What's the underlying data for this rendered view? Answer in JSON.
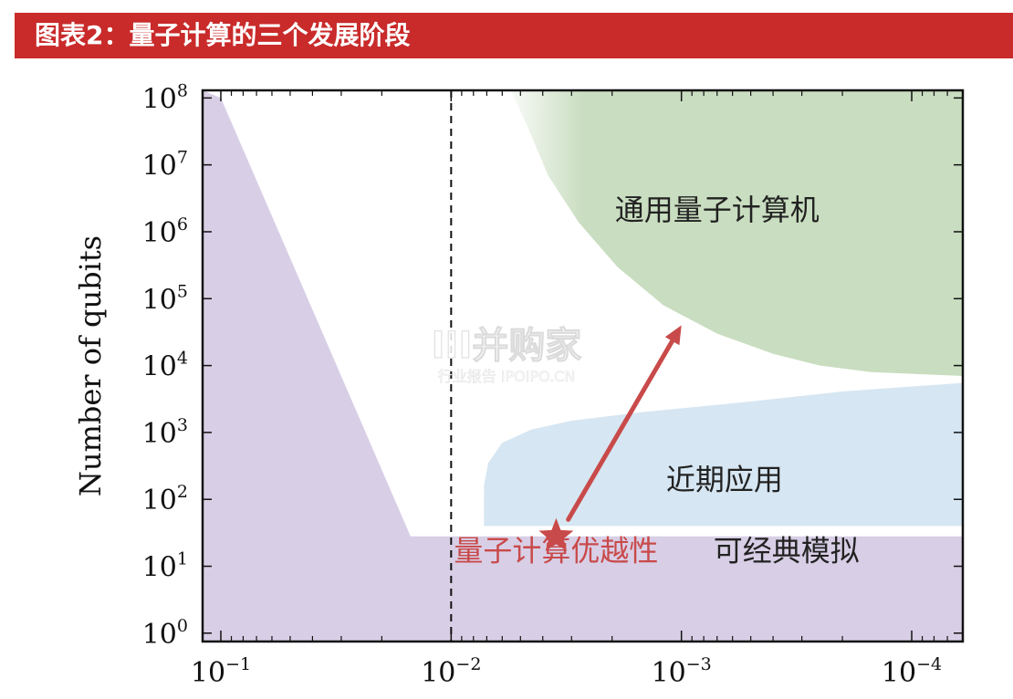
{
  "header": {
    "title": "图表2：量子计算的三个发展阶段",
    "bg_color": "#c92a2a"
  },
  "chart_data": {
    "type": "area",
    "title": "",
    "xlabel": "",
    "ylabel": "Number of qubits",
    "x_scale": "log",
    "x_reversed": true,
    "y_scale": "log",
    "xlim": [
      0.12,
      6e-05
    ],
    "ylim": [
      0.75,
      130000000
    ],
    "x_ticks": [
      {
        "value": 0.1,
        "base": "10",
        "exp": "−1"
      },
      {
        "value": 0.01,
        "base": "10",
        "exp": "−2"
      },
      {
        "value": 0.001,
        "base": "10",
        "exp": "−3"
      },
      {
        "value": 0.0001,
        "base": "10",
        "exp": "−4"
      }
    ],
    "y_ticks": [
      {
        "value": 1,
        "base": "10",
        "exp": "0"
      },
      {
        "value": 10,
        "base": "10",
        "exp": "1"
      },
      {
        "value": 100,
        "base": "10",
        "exp": "2"
      },
      {
        "value": 1000,
        "base": "10",
        "exp": "3"
      },
      {
        "value": 10000,
        "base": "10",
        "exp": "4"
      },
      {
        "value": 100000,
        "base": "10",
        "exp": "5"
      },
      {
        "value": 1000000,
        "base": "10",
        "exp": "6"
      },
      {
        "value": 10000000,
        "base": "10",
        "exp": "7"
      },
      {
        "value": 100000000,
        "base": "10",
        "exp": "8"
      }
    ],
    "threshold_line": {
      "x": 0.01,
      "style": "dashed"
    },
    "regions": [
      {
        "label": "可经典模拟",
        "color": "#d8cfe6",
        "label_at": [
          0.00035,
          12
        ],
        "polygon": [
          [
            0.12,
            0.75
          ],
          [
            0.12,
            130000000
          ],
          [
            0.1,
            100000000
          ],
          [
            0.015,
            28
          ],
          [
            6e-05,
            28
          ],
          [
            6e-05,
            0.75
          ]
        ]
      },
      {
        "label": "近期应用",
        "color": "#cfe1ef",
        "label_at": [
          0.00065,
          140
        ],
        "polygon": [
          [
            0.0072,
            40
          ],
          [
            0.0072,
            160
          ],
          [
            0.0069,
            350
          ],
          [
            0.006,
            700
          ],
          [
            0.0045,
            1100
          ],
          [
            0.003,
            1500
          ],
          [
            0.0015,
            2000
          ],
          [
            0.0005,
            2900
          ],
          [
            0.0002,
            4100
          ],
          [
            6e-05,
            5500
          ],
          [
            6e-05,
            40
          ]
        ]
      },
      {
        "label": "通用量子计算机",
        "color": "#c9ddc0",
        "label_at": [
          0.0007,
          1500000
        ],
        "polygon": [
          [
            0.0055,
            130000000
          ],
          [
            0.0047,
            40000000
          ],
          [
            0.0038,
            7000000
          ],
          [
            0.0028,
            1400000
          ],
          [
            0.0019,
            300000
          ],
          [
            0.0012,
            80000
          ],
          [
            0.0007,
            30000
          ],
          [
            0.0004,
            15000
          ],
          [
            0.00025,
            10000
          ],
          [
            0.00015,
            8000
          ],
          [
            6e-05,
            7000
          ],
          [
            6e-05,
            130000000
          ]
        ]
      }
    ],
    "marker": {
      "type": "star",
      "x": 0.0035,
      "y": 28,
      "label": "量子计算优越性",
      "label_at": [
        0.0035,
        12
      ],
      "color": "#c94a4a"
    },
    "arrow": {
      "from": [
        0.0031,
        50
      ],
      "to": [
        0.001,
        40000
      ],
      "color": "#c94a4a"
    }
  },
  "watermark": {
    "main": "ⅠⅠⅠ并购家",
    "sub": "行业报告 IPOIPO.CN"
  }
}
